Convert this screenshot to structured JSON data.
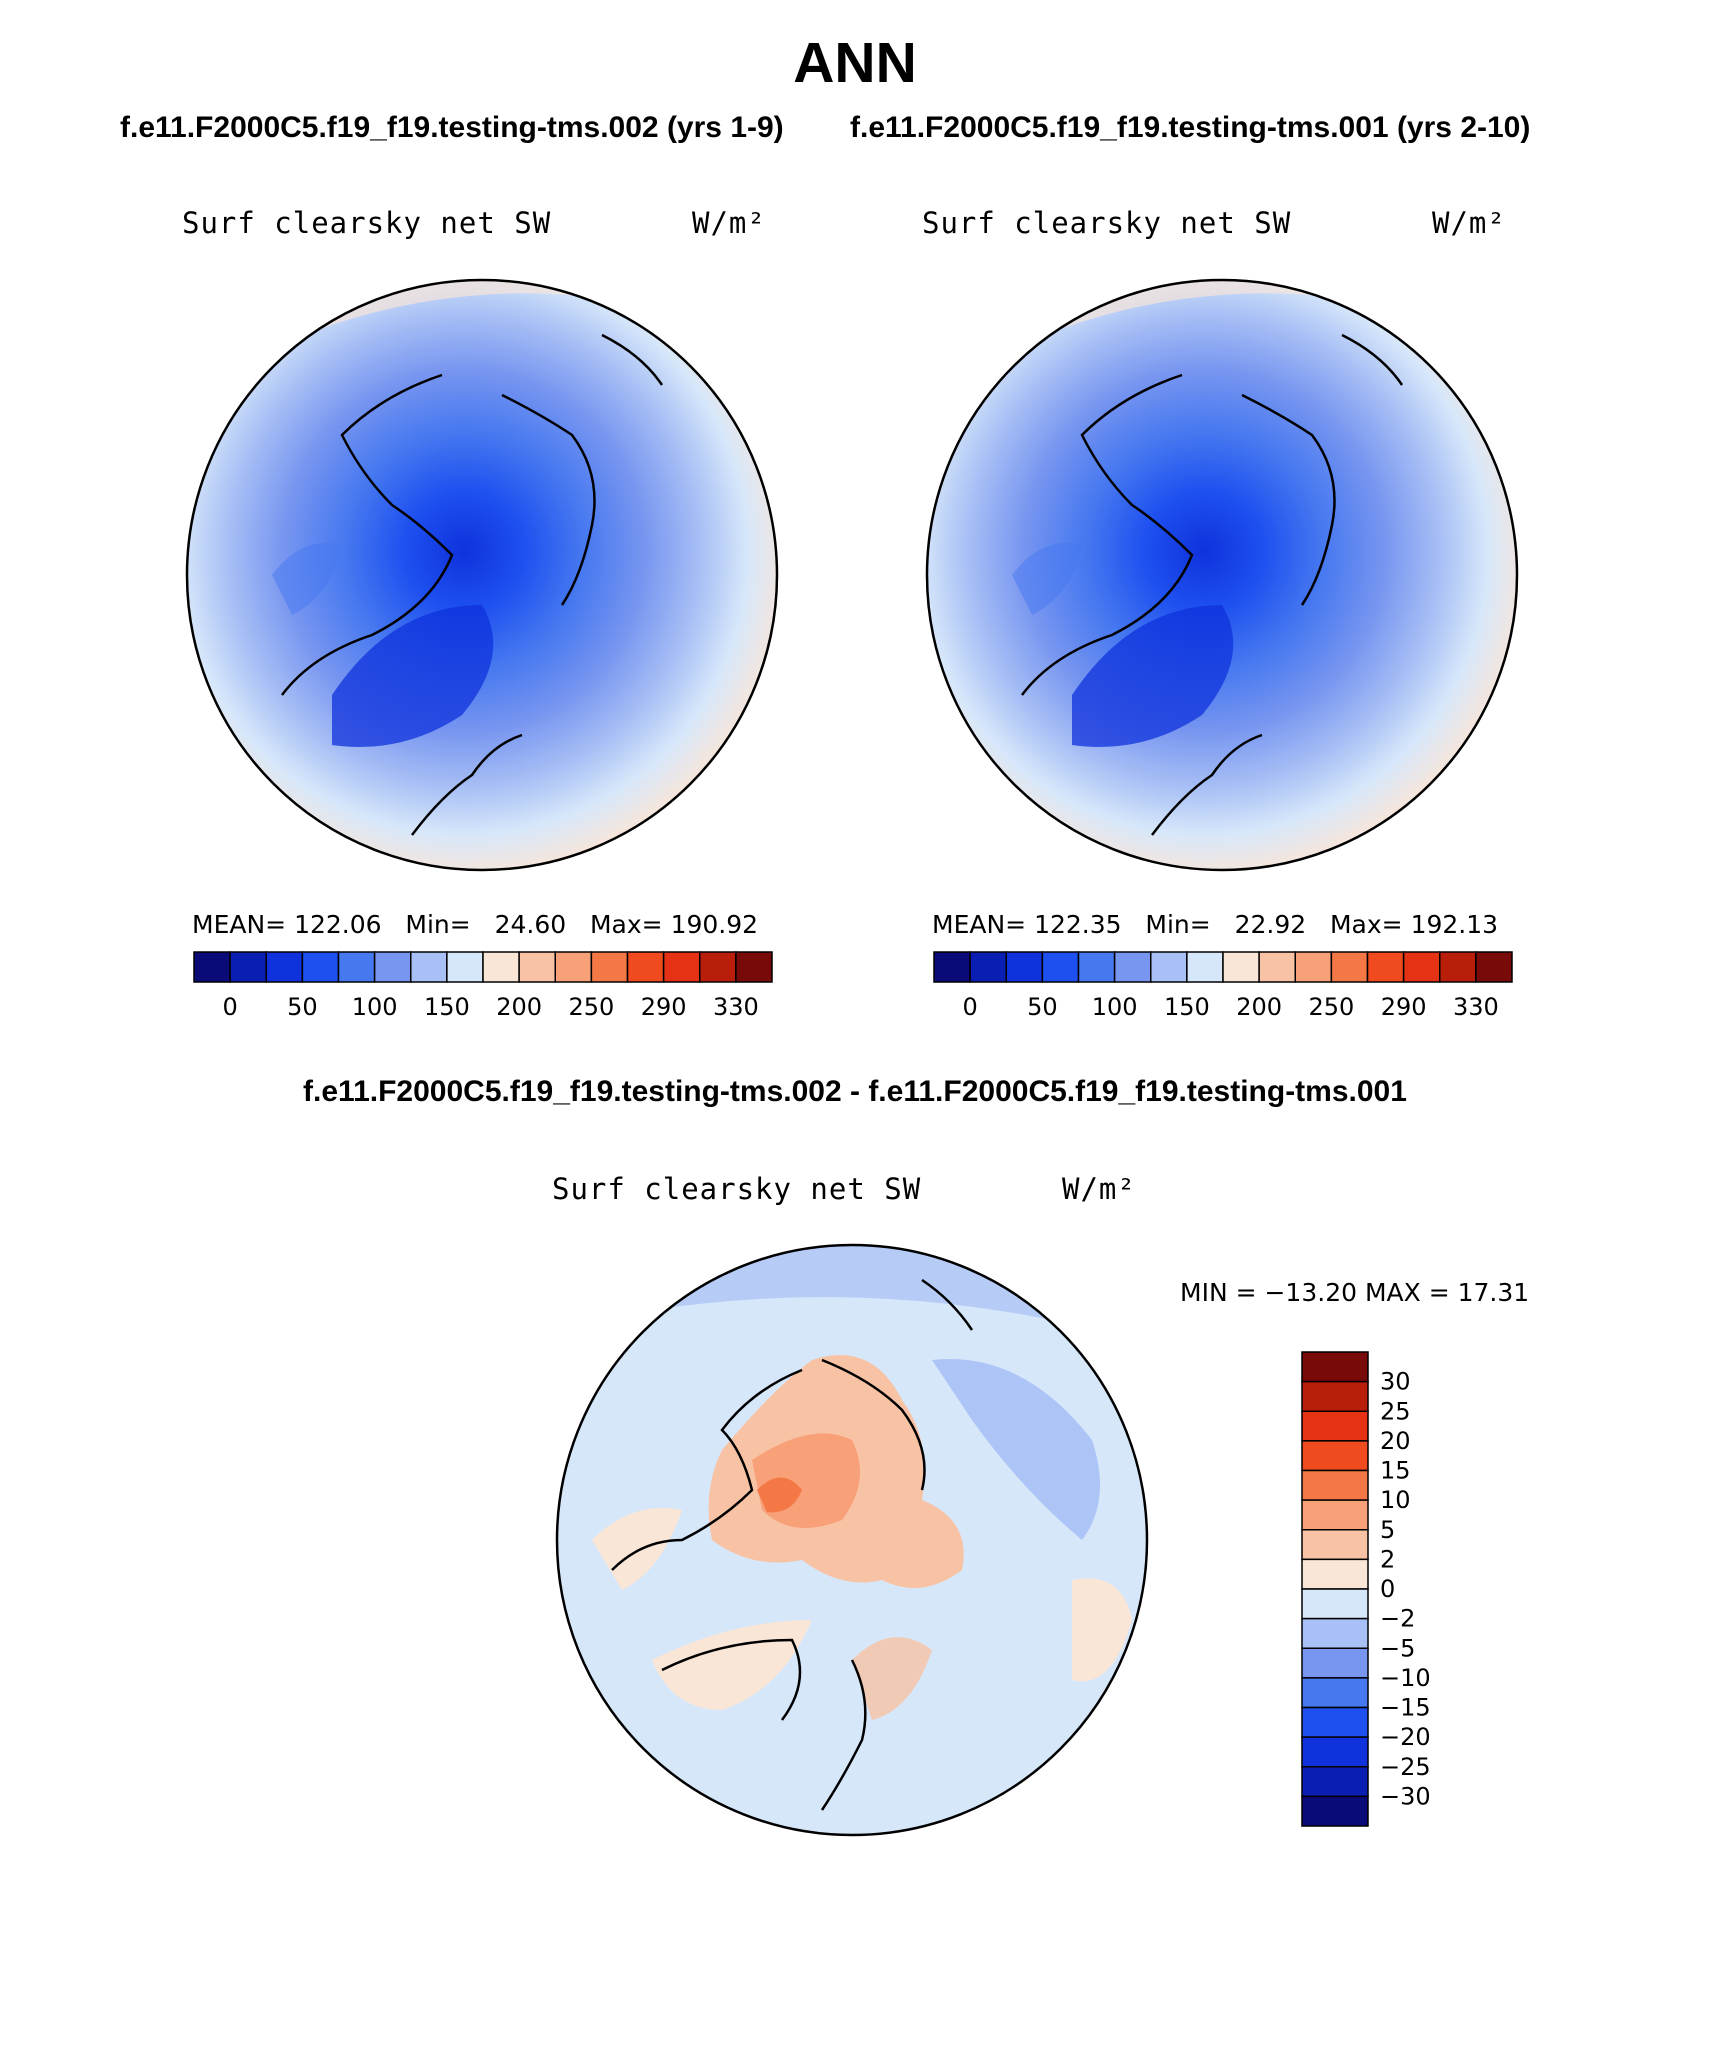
{
  "figure": {
    "title": "ANN",
    "case_a_label": "f.e11.F2000C5.f19_f19.testing-tms.002 (yrs 1-9)",
    "case_b_label": "f.e11.F2000C5.f19_f19.testing-tms.001 (yrs 2-10)",
    "diff_label": "f.e11.F2000C5.f19_f19.testing-tms.002 - f.e11.F2000C5.f19_f19.testing-tms.001"
  },
  "panels": [
    {
      "variable": "Surf clearsky net SW",
      "units": "W/m²",
      "stats": {
        "mean_label": "MEAN=",
        "mean": "122.06",
        "min_label": "Min=",
        "min": "24.60",
        "max_label": "Max=",
        "max": "190.92"
      }
    },
    {
      "variable": "Surf clearsky net SW",
      "units": "W/m²",
      "stats": {
        "mean_label": "MEAN=",
        "mean": "122.35",
        "min_label": "Min=",
        "min": "22.92",
        "max_label": "Max=",
        "max": "192.13"
      }
    }
  ],
  "diff_panel": {
    "variable": "Surf clearsky net SW",
    "units": "W/m²",
    "range_text": "MIN = −13.20 MAX =   17.31"
  },
  "colorbar_abs": {
    "colors": [
      "#0a0a78",
      "#0a1eb4",
      "#0f32dc",
      "#1e50f0",
      "#4678f0",
      "#7896f0",
      "#a8c0f5",
      "#d7e7fa",
      "#fae6d7",
      "#f8c3a5",
      "#f8a078",
      "#f37846",
      "#f04b1e",
      "#e63214",
      "#b91e0a",
      "#780a0a"
    ],
    "tick_labels": [
      "0",
      "50",
      "100",
      "150",
      "200",
      "250",
      "290",
      "330"
    ]
  },
  "colorbar_diff": {
    "colors": [
      "#0a0a78",
      "#0a1eb4",
      "#0f32dc",
      "#1e50f0",
      "#4678f0",
      "#7896f0",
      "#a8c0f5",
      "#d7e7fa",
      "#fae6d7",
      "#f8c3a5",
      "#f8a078",
      "#f37846",
      "#f04b1e",
      "#e63214",
      "#b91e0a",
      "#780a0a"
    ],
    "tick_labels": [
      "−30",
      "−25",
      "−20",
      "−15",
      "−10",
      "−5",
      "−2",
      "0",
      "2",
      "5",
      "10",
      "15",
      "20",
      "25",
      "30"
    ]
  }
}
